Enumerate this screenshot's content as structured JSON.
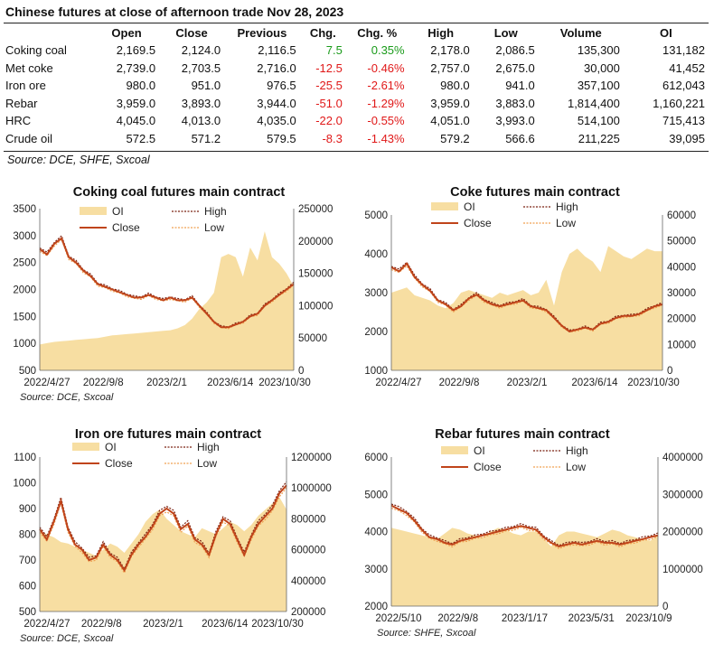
{
  "header": {
    "title": "Chinese futures at close of afternoon trade Nov 28, 2023"
  },
  "table": {
    "columns": [
      "",
      "Open",
      "Close",
      "Previous",
      "Chg.",
      "Chg. %",
      "High",
      "Low",
      "Volume",
      "OI"
    ],
    "rows": [
      [
        "Coking coal",
        "2,169.5",
        "2,124.0",
        "2,116.5",
        "7.5",
        "0.35%",
        "2,178.0",
        "2,086.5",
        "135,300",
        "131,182"
      ],
      [
        "Met coke",
        "2,739.0",
        "2,703.5",
        "2,716.0",
        "-12.5",
        "-0.46%",
        "2,757.0",
        "2,675.0",
        "30,000",
        "41,452"
      ],
      [
        "Iron ore",
        "980.0",
        "951.0",
        "976.5",
        "-25.5",
        "-2.61%",
        "980.0",
        "941.0",
        "357,100",
        "612,043"
      ],
      [
        "Rebar",
        "3,959.0",
        "3,893.0",
        "3,944.0",
        "-51.0",
        "-1.29%",
        "3,959.0",
        "3,883.0",
        "1,814,400",
        "1,160,221"
      ],
      [
        "HRC",
        "4,045.0",
        "4,013.0",
        "4,035.0",
        "-22.0",
        "-0.55%",
        "4,051.0",
        "3,993.0",
        "514,100",
        "715,413"
      ],
      [
        "Crude oil",
        "572.5",
        "571.2",
        "579.5",
        "-8.3",
        "-1.43%",
        "579.2",
        "566.6",
        "211,225",
        "39,095"
      ]
    ],
    "source": "Source: DCE, SHFE, Sxcoal"
  },
  "colors": {
    "oi_fill": "#f7dea2",
    "close": "#c0441a",
    "high": "#7a2010",
    "low": "#f0a050",
    "up": "#1a9b1a",
    "down": "#e01818"
  },
  "chart_data": [
    {
      "type": "line",
      "title": "Coking coal futures main contract",
      "source": "Source: DCE, Sxcoal",
      "xticks": [
        "2022/4/27",
        "2022/9/8",
        "2023/2/1",
        "2023/6/14",
        "2023/10/30"
      ],
      "ylim": [
        500,
        3500
      ],
      "yticks": [
        500,
        1000,
        1500,
        2000,
        2500,
        3000,
        3500
      ],
      "y2lim": [
        0,
        250000
      ],
      "y2ticks": [
        0,
        50000,
        100000,
        150000,
        200000,
        250000
      ],
      "legend": [
        "OI",
        "High",
        "Close",
        "Low"
      ],
      "series": [
        {
          "name": "Close",
          "axis": "left",
          "values": [
            2750,
            2650,
            2850,
            2950,
            2600,
            2500,
            2350,
            2250,
            2100,
            2050,
            2000,
            1950,
            1900,
            1850,
            1850,
            1900,
            1850,
            1800,
            1850,
            1800,
            1800,
            1850,
            1700,
            1550,
            1400,
            1300,
            1300,
            1350,
            1400,
            1500,
            1550,
            1700,
            1800,
            1900,
            2000,
            2100
          ]
        },
        {
          "name": "OI",
          "axis": "right",
          "values": [
            40000,
            42000,
            44000,
            45000,
            46000,
            47000,
            48000,
            49000,
            50000,
            52000,
            54000,
            55000,
            56000,
            57000,
            58000,
            59000,
            60000,
            61000,
            62000,
            65000,
            70000,
            80000,
            95000,
            105000,
            120000,
            175000,
            180000,
            175000,
            145000,
            190000,
            170000,
            215000,
            175000,
            165000,
            150000,
            130000
          ]
        }
      ]
    },
    {
      "type": "line",
      "title": "Coke futures main contract",
      "source": "",
      "xticks": [
        "2022/4/27",
        "2022/9/8",
        "2023/2/1",
        "2023/6/14",
        "2023/10/30"
      ],
      "ylim": [
        1000,
        5000
      ],
      "yticks": [
        1000,
        2000,
        3000,
        4000,
        5000
      ],
      "y2lim": [
        0,
        60000
      ],
      "y2ticks": [
        0,
        10000,
        20000,
        30000,
        40000,
        50000,
        60000
      ],
      "legend": [
        "OI",
        "High",
        "Close",
        "Low"
      ],
      "series": [
        {
          "name": "Close",
          "axis": "left",
          "values": [
            3650,
            3550,
            3750,
            3400,
            3200,
            3050,
            2800,
            2700,
            2550,
            2650,
            2850,
            2950,
            2800,
            2700,
            2650,
            2700,
            2750,
            2800,
            2650,
            2600,
            2550,
            2350,
            2150,
            2000,
            2050,
            2100,
            2050,
            2200,
            2250,
            2350,
            2400,
            2400,
            2450,
            2550,
            2650,
            2700
          ]
        },
        {
          "name": "OI",
          "axis": "right",
          "values": [
            30000,
            31000,
            32000,
            29000,
            28000,
            27000,
            25000,
            24000,
            26000,
            30000,
            31000,
            30000,
            29000,
            28000,
            30000,
            29000,
            30000,
            31000,
            29000,
            30000,
            35000,
            25000,
            38000,
            45000,
            47000,
            44000,
            42000,
            38000,
            48000,
            46000,
            44000,
            43000,
            45000,
            47000,
            46000,
            46000
          ]
        }
      ]
    },
    {
      "type": "line",
      "title": "Iron ore futures main contract",
      "source": "Source: DCE, Sxcoal",
      "xticks": [
        "2022/4/27",
        "2022/9/8",
        "2023/2/1",
        "2023/6/14",
        "2023/10/30"
      ],
      "ylim": [
        500,
        1100
      ],
      "yticks": [
        500,
        600,
        700,
        800,
        900,
        1000,
        1100
      ],
      "y2lim": [
        200000,
        1200000
      ],
      "y2ticks": [
        200000,
        400000,
        600000,
        800000,
        1000000,
        1200000
      ],
      "legend": [
        "OI",
        "High",
        "Close",
        "Low"
      ],
      "series": [
        {
          "name": "Close",
          "axis": "left",
          "values": [
            820,
            780,
            850,
            930,
            820,
            760,
            740,
            700,
            710,
            760,
            720,
            700,
            660,
            720,
            760,
            790,
            830,
            880,
            900,
            880,
            820,
            840,
            780,
            760,
            720,
            800,
            860,
            840,
            780,
            720,
            790,
            840,
            870,
            900,
            960,
            990
          ]
        },
        {
          "name": "OI",
          "axis": "right",
          "values": [
            720000,
            700000,
            680000,
            650000,
            640000,
            620000,
            600000,
            580000,
            560000,
            600000,
            640000,
            620000,
            580000,
            640000,
            700000,
            780000,
            830000,
            860000,
            800000,
            760000,
            720000,
            700000,
            680000,
            740000,
            720000,
            700000,
            740000,
            780000,
            760000,
            720000,
            760000,
            820000,
            860000,
            900000,
            940000,
            860000
          ]
        }
      ]
    },
    {
      "type": "line",
      "title": "Rebar futures main contract",
      "source": "Source: SHFE, Sxcoal",
      "xticks": [
        "2022/5/10",
        "2022/9/8",
        "2023/1/17",
        "2023/5/31",
        "2023/10/9"
      ],
      "ylim": [
        2000,
        6000
      ],
      "yticks": [
        2000,
        3000,
        4000,
        5000,
        6000
      ],
      "y2lim": [
        0,
        4000000
      ],
      "y2ticks": [
        0,
        1000000,
        2000000,
        3000000,
        4000000
      ],
      "legend": [
        "OI",
        "High",
        "Close",
        "Low"
      ],
      "series": [
        {
          "name": "Close",
          "axis": "left",
          "values": [
            4700,
            4600,
            4500,
            4300,
            4050,
            3850,
            3800,
            3700,
            3650,
            3750,
            3800,
            3850,
            3900,
            3950,
            4000,
            4050,
            4100,
            4150,
            4100,
            4050,
            3850,
            3700,
            3600,
            3650,
            3700,
            3650,
            3700,
            3750,
            3700,
            3700,
            3650,
            3700,
            3750,
            3800,
            3850,
            3900
          ]
        },
        {
          "name": "OI",
          "axis": "right",
          "values": [
            2100000,
            2050000,
            2000000,
            1950000,
            1900000,
            1850000,
            1800000,
            1950000,
            2100000,
            2050000,
            1950000,
            1900000,
            1850000,
            2000000,
            2100000,
            2050000,
            1950000,
            1900000,
            2000000,
            2000000,
            1800000,
            1600000,
            1900000,
            2000000,
            2000000,
            1950000,
            1900000,
            1850000,
            1950000,
            2050000,
            2000000,
            1900000,
            1850000,
            1800000,
            1750000,
            1900000
          ]
        }
      ]
    }
  ]
}
